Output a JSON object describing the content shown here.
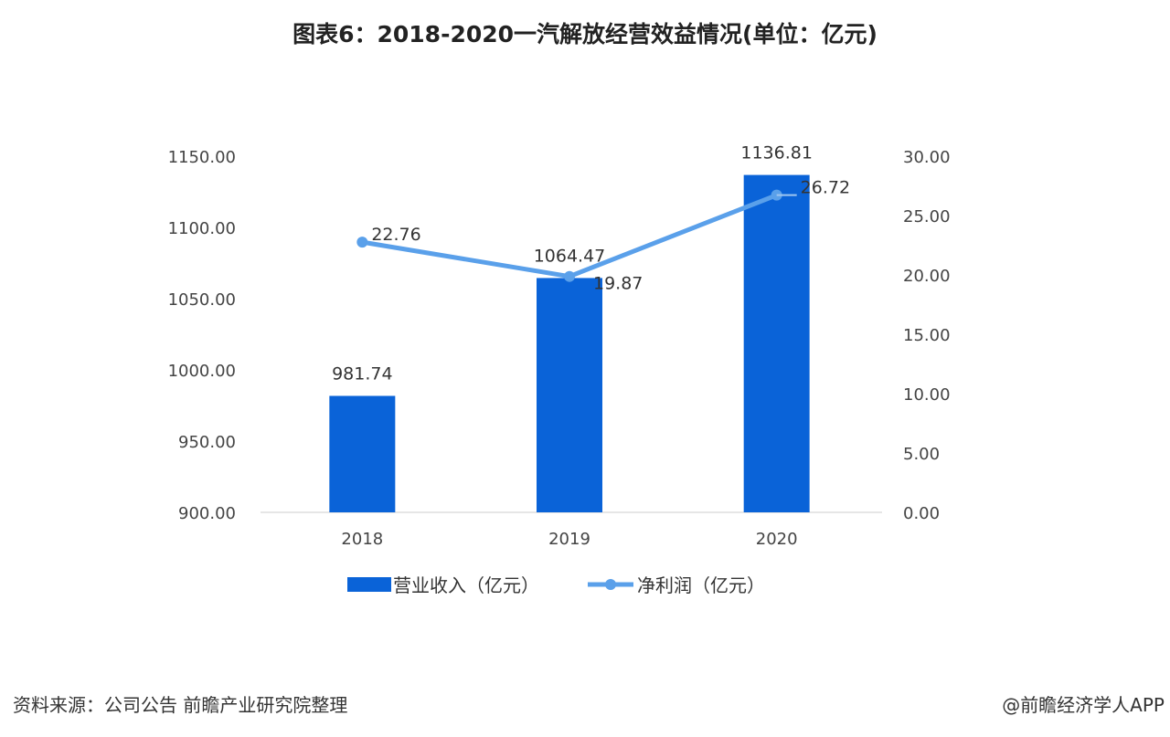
{
  "title": "图表6：2018-2020一汽解放经营效益情况(单位：亿元)",
  "chart_data": {
    "type": "bar+line",
    "title": "图表6：2018-2020一汽解放经营效益情况(单位：亿元)",
    "categories": [
      "2018",
      "2019",
      "2020"
    ],
    "series": [
      {
        "name": "营业收入（亿元）",
        "type": "bar",
        "axis": "left",
        "values": [
          981.74,
          1064.47,
          1136.81
        ],
        "labels": [
          "981.74",
          "1064.47",
          "1136.81"
        ],
        "color": "#0a63d8"
      },
      {
        "name": "净利润（亿元）",
        "type": "line",
        "axis": "right",
        "values": [
          22.76,
          19.87,
          26.72
        ],
        "labels": [
          "22.76",
          "19.87",
          "26.72"
        ],
        "color": "#5aa0ea"
      }
    ],
    "y_left": {
      "ylim": [
        900,
        1150
      ],
      "ticks": [
        "900.00",
        "950.00",
        "1000.00",
        "1050.00",
        "1100.00",
        "1150.00"
      ]
    },
    "y_right": {
      "ylim": [
        0,
        30
      ],
      "ticks": [
        "0.00",
        "5.00",
        "10.00",
        "15.00",
        "20.00",
        "25.00",
        "30.00"
      ]
    },
    "grid": false,
    "legend": "bottom"
  },
  "footer": {
    "source": "资料来源：公司公告 前瞻产业研究院整理",
    "credit": "@前瞻经济学人APP"
  }
}
